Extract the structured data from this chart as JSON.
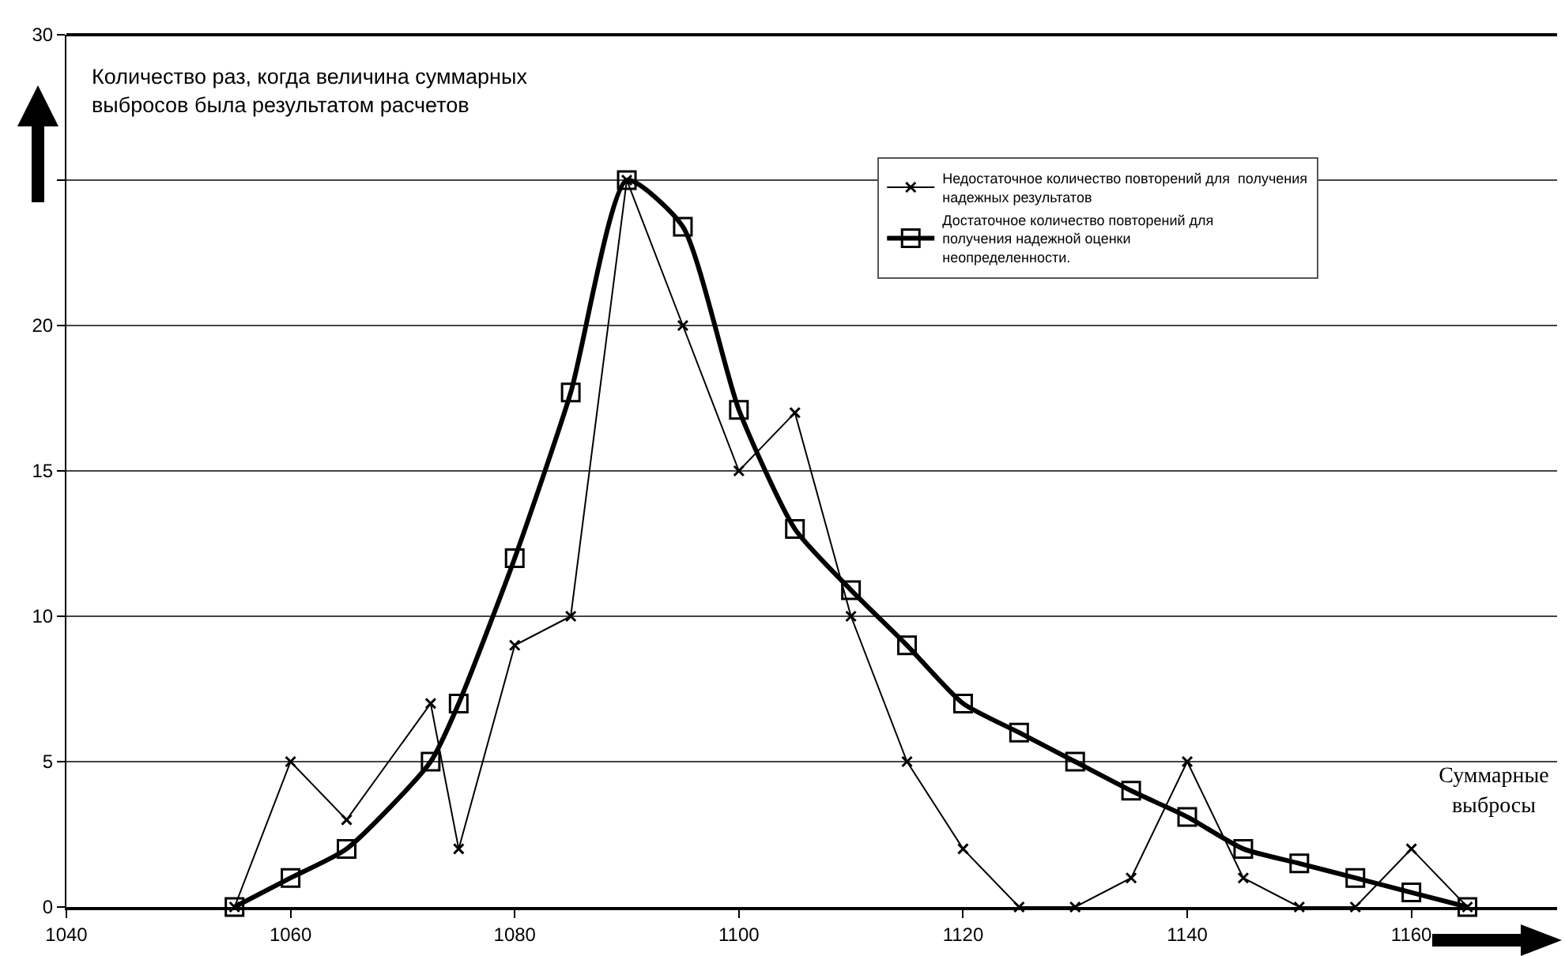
{
  "chart_data": {
    "type": "line",
    "xlabel": "Суммарные выбросы",
    "ylabel": "Количество раз, когда величина суммарных выбросов была результатом расчетов",
    "x": [
      1055,
      1060,
      1065,
      1072.5,
      1075,
      1080,
      1085,
      1090,
      1095,
      1100,
      1105,
      1110,
      1115,
      1120,
      1125,
      1130,
      1135,
      1140,
      1145,
      1150,
      1155,
      1160,
      1165
    ],
    "series": [
      {
        "name": "Недостаточное количество повторений для  получения\nнадежных результатов",
        "color": "#000000",
        "marker": "cross",
        "values": [
          0,
          5,
          3,
          7,
          2,
          9,
          10,
          25,
          20,
          15,
          17,
          10,
          5,
          2,
          0,
          0,
          1,
          5,
          1,
          0,
          0,
          2,
          0
        ]
      },
      {
        "name": "Достаточное количество повторений для\nполучения надежной оценки\nнеопределенности.",
        "color": "#000000",
        "marker": "square",
        "values": [
          0,
          1,
          2,
          5,
          7,
          12,
          17.7,
          25,
          23.4,
          17.1,
          13,
          10.9,
          9,
          7,
          6,
          5,
          4,
          3.1,
          2,
          1.5,
          1,
          0.5,
          0
        ]
      }
    ],
    "xlim": [
      1040,
      1173
    ],
    "xticks": [
      1040,
      1060,
      1080,
      1100,
      1120,
      1140,
      1160
    ],
    "ylim": [
      0,
      30
    ],
    "yticks": [
      0,
      5,
      10,
      15,
      20,
      {
        "value": 25,
        "label": null
      },
      30
    ],
    "grid": "y",
    "legend": "top right",
    "line_style": "solid"
  }
}
